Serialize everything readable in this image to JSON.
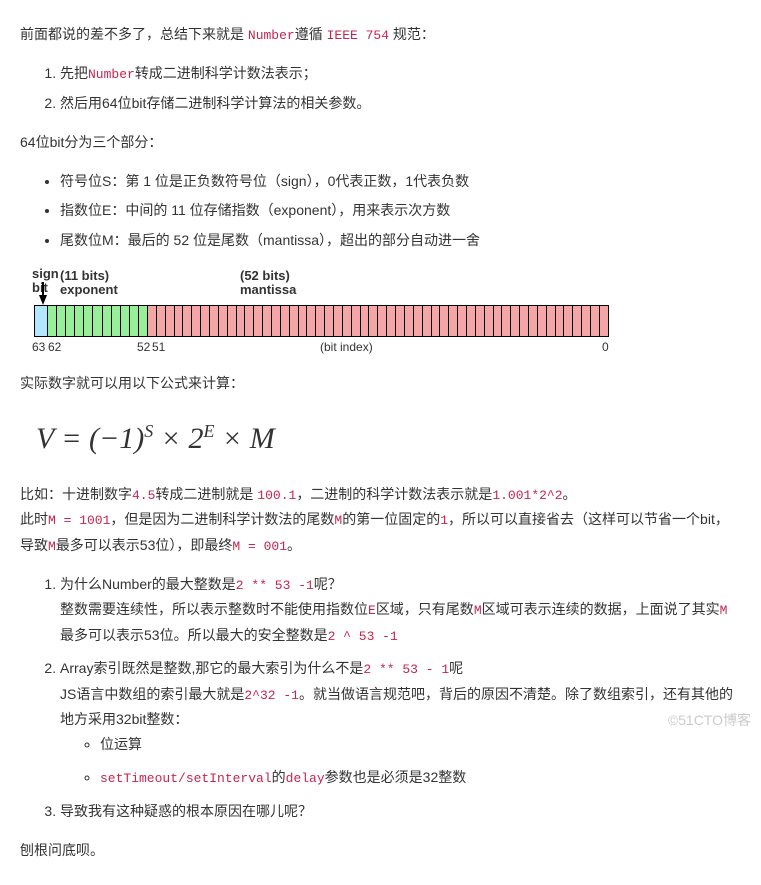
{
  "intro": {
    "prefix": "前面都说的差不多了，总结下来就是 ",
    "code1": "Number",
    "mid": "遵循 ",
    "code2": "IEEE 754",
    "suffix": " 规范："
  },
  "steps": {
    "s1_a": "先把",
    "s1_code": "Number",
    "s1_b": "转成二进制科学计数法表示；",
    "s2": "然后用64位bit存储二进制科学计算法的相关参数。"
  },
  "parts_intro": "64位bit分为三个部分：",
  "parts": {
    "p1": "符号位S：第 1 位是正负数符号位（sign），0代表正数，1代表负数",
    "p2": "指数位E：中间的 11 位存储指数（exponent），用来表示次方数",
    "p3": "尾数位M：最后的 52 位是尾数（mantissa），超出的部分自动进一舍"
  },
  "diagram": {
    "sign_label": "sign\nbit",
    "exp_label_bits": "(11 bits)",
    "exp_label": "exponent",
    "mant_label_bits": "(52 bits)",
    "mant_label": "mantissa",
    "bit_index_label": "(bit index)",
    "idx63": "63",
    "idx62": "62",
    "idx52": "52",
    "idx51": "51",
    "idx0": "0",
    "sign_color": "#b3e6ff",
    "exp_color": "#99ee99",
    "mant_color": "#f4a6a6"
  },
  "calc_intro": "实际数字就可以用以下公式来计算：",
  "formula": {
    "V": "V",
    "eq": " = (−1)",
    "S": "S",
    "times1": " × 2",
    "E": "E",
    "times2": " × ",
    "M": "M"
  },
  "example": {
    "line1_a": "比如：十进制数字",
    "line1_c1": "4.5",
    "line1_b": "转成二进制就是 ",
    "line1_c2": "100.1",
    "line1_c": "，二进制的科学计数法表示就是",
    "line1_c3": "1.001*2^2",
    "line1_d": "。",
    "line2_a": "此时",
    "line2_c1": "M = 1001",
    "line2_b": "，但是因为二进制科学计数法的尾数",
    "line2_c2": "M",
    "line2_c": "的第一位固定的",
    "line2_c3": "1",
    "line2_d": "，所以可以直接省去（这样可以节省一个bit，导致",
    "line2_c4": "M",
    "line2_e": "最多可以表示53位），即最终",
    "line2_c5": "M = 001",
    "line2_f": "。"
  },
  "questions": {
    "q1_title_a": "为什么Number的最大整数是",
    "q1_code": "2 ** 53 -1",
    "q1_title_b": "呢？",
    "q1_body_a": "整数需要连续性，所以表示整数时不能使用指数位",
    "q1_c1": "E",
    "q1_body_b": "区域，只有尾数",
    "q1_c2": "M",
    "q1_body_c": "区域可表示连续的数据，上面说了其实",
    "q1_c3": "M",
    "q1_body_d": "最多可以表示53位。所以最大的安全整数是",
    "q1_c4": "2 ^ 53 -1",
    "q2_title_a": "Array索引既然是整数,那它的最大索引为什么不是",
    "q2_code": "2 ** 53 - 1",
    "q2_title_b": "呢",
    "q2_body_a": "JS语言中数组的索引最大就是",
    "q2_c1": "2^32 -1",
    "q2_body_b": "。就当做语言规范吧，背后的原因不清楚。除了数组索引，还有其他的地方采用32bit整数：",
    "q2_li1": "位运算",
    "q2_li2_c1": "setTimeout/setInterval",
    "q2_li2_a": "的",
    "q2_li2_c2": "delay",
    "q2_li2_b": "参数也是必须是32整数",
    "q3": "导致我有这种疑惑的根本原因在哪儿呢？"
  },
  "conclusion": "刨根问底呗。",
  "watermark": "©51CTO博客"
}
